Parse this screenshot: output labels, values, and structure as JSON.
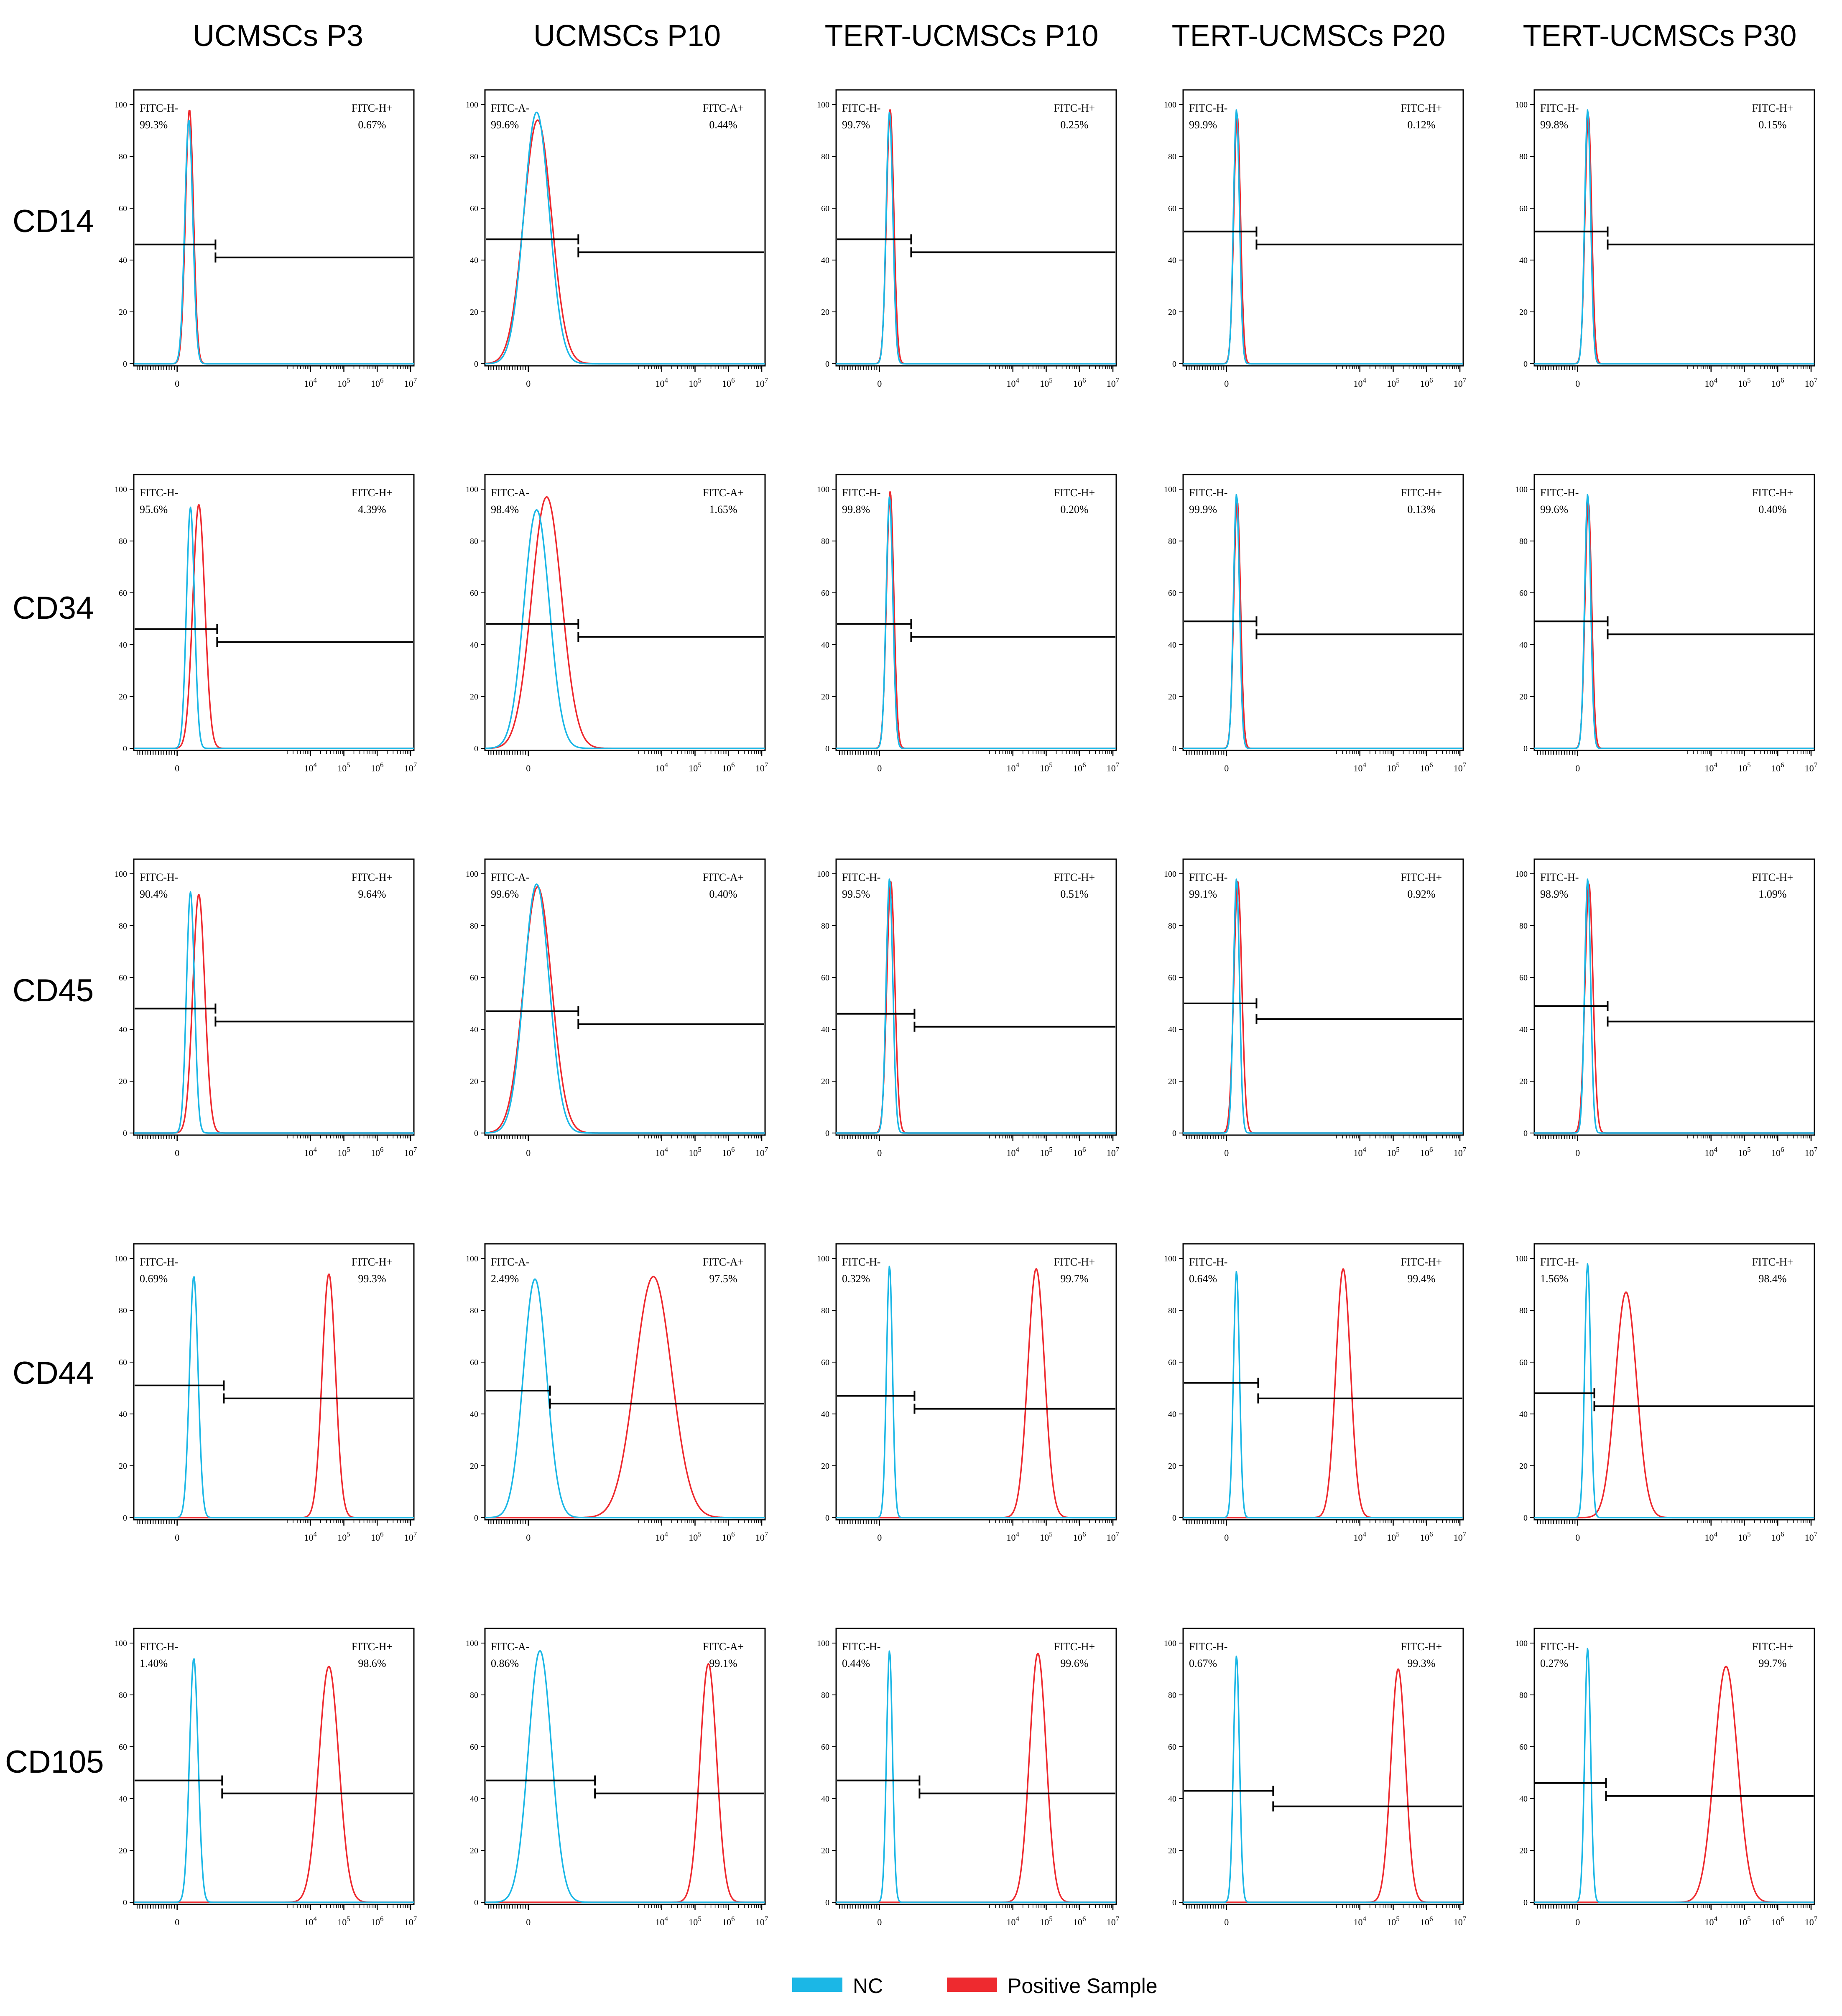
{
  "colors": {
    "nc": "#1bb7e6",
    "positive": "#ee2a2f",
    "axis": "#000000",
    "gate": "#000000"
  },
  "legend": {
    "nc_label": "NC",
    "positive_label": "Positive Sample"
  },
  "chart_data": {
    "type": "histogram-grid",
    "columns": [
      "UCMSCs P3",
      "UCMSCs P10",
      "TERT-UCMSCs P10",
      "TERT-UCMSCs P20",
      "TERT-UCMSCs P30"
    ],
    "rows": [
      "CD14",
      "CD34",
      "CD45",
      "CD44",
      "CD105"
    ],
    "yticks": [
      0,
      20,
      40,
      60,
      80,
      100
    ],
    "ylim": [
      0,
      100
    ],
    "xlim_log": [
      -1.3,
      7.1
    ],
    "xticks": [
      {
        "label": "0",
        "value": 0
      },
      {
        "label": "10",
        "sup": "4",
        "value": 4
      },
      {
        "label": "10",
        "sup": "5",
        "value": 5
      },
      {
        "label": "10",
        "sup": "6",
        "value": 6
      },
      {
        "label": "10",
        "sup": "7",
        "value": 7
      }
    ],
    "panels": [
      {
        "row": "CD14",
        "col": "UCMSCs P3",
        "neg_label": "FITC-H-",
        "neg_pct": "99.3%",
        "pos_label": "FITC-H+",
        "pos_pct": "0.67%",
        "nc": {
          "center": 0.35,
          "width": 0.12,
          "peak": 94
        },
        "sample": {
          "center": 0.37,
          "width": 0.12,
          "peak": 98
        },
        "gate": {
          "x": 1.15,
          "left_y": 46,
          "right_y": 41
        }
      },
      {
        "row": "CD14",
        "col": "UCMSCs P10",
        "neg_label": "FITC-A-",
        "neg_pct": "99.6%",
        "pos_label": "FITC-A+",
        "pos_pct": "0.44%",
        "nc": {
          "center": 0.25,
          "width": 0.38,
          "peak": 97
        },
        "sample": {
          "center": 0.28,
          "width": 0.42,
          "peak": 94
        },
        "gate": {
          "x": 1.5,
          "left_y": 48,
          "right_y": 43
        }
      },
      {
        "row": "CD14",
        "col": "TERT-UCMSCs P10",
        "neg_label": "FITC-H-",
        "neg_pct": "99.7%",
        "pos_label": "FITC-H+",
        "pos_pct": "0.25%",
        "nc": {
          "center": 0.3,
          "width": 0.1,
          "peak": 97
        },
        "sample": {
          "center": 0.32,
          "width": 0.11,
          "peak": 98
        },
        "gate": {
          "x": 0.95,
          "left_y": 48,
          "right_y": 43
        }
      },
      {
        "row": "CD14",
        "col": "TERT-UCMSCs P20",
        "neg_label": "FITC-H-",
        "neg_pct": "99.9%",
        "pos_label": "FITC-H+",
        "pos_pct": "0.12%",
        "nc": {
          "center": 0.3,
          "width": 0.09,
          "peak": 98
        },
        "sample": {
          "center": 0.32,
          "width": 0.1,
          "peak": 96
        },
        "gate": {
          "x": 0.9,
          "left_y": 51,
          "right_y": 46
        }
      },
      {
        "row": "CD14",
        "col": "TERT-UCMSCs P30",
        "neg_label": "FITC-H-",
        "neg_pct": "99.8%",
        "pos_label": "FITC-H+",
        "pos_pct": "0.15%",
        "nc": {
          "center": 0.3,
          "width": 0.09,
          "peak": 98
        },
        "sample": {
          "center": 0.32,
          "width": 0.1,
          "peak": 96
        },
        "gate": {
          "x": 0.9,
          "left_y": 51,
          "right_y": 46
        }
      },
      {
        "row": "CD34",
        "col": "UCMSCs P3",
        "neg_label": "FITC-H-",
        "neg_pct": "95.6%",
        "pos_label": "FITC-H+",
        "pos_pct": "4.39%",
        "nc": {
          "center": 0.4,
          "width": 0.12,
          "peak": 93
        },
        "sample": {
          "center": 0.65,
          "width": 0.18,
          "peak": 94
        },
        "gate": {
          "x": 1.2,
          "left_y": 46,
          "right_y": 41
        }
      },
      {
        "row": "CD34",
        "col": "UCMSCs P10",
        "neg_label": "FITC-A-",
        "neg_pct": "98.4%",
        "pos_label": "FITC-A+",
        "pos_pct": "1.65%",
        "nc": {
          "center": 0.25,
          "width": 0.38,
          "peak": 92
        },
        "sample": {
          "center": 0.55,
          "width": 0.45,
          "peak": 97
        },
        "gate": {
          "x": 1.5,
          "left_y": 48,
          "right_y": 43
        }
      },
      {
        "row": "CD34",
        "col": "TERT-UCMSCs P10",
        "neg_label": "FITC-H-",
        "neg_pct": "99.8%",
        "pos_label": "FITC-H+",
        "pos_pct": "0.20%",
        "nc": {
          "center": 0.3,
          "width": 0.1,
          "peak": 97
        },
        "sample": {
          "center": 0.32,
          "width": 0.11,
          "peak": 99
        },
        "gate": {
          "x": 0.95,
          "left_y": 48,
          "right_y": 43
        }
      },
      {
        "row": "CD34",
        "col": "TERT-UCMSCs P20",
        "neg_label": "FITC-H-",
        "neg_pct": "99.9%",
        "pos_label": "FITC-H+",
        "pos_pct": "0.13%",
        "nc": {
          "center": 0.3,
          "width": 0.09,
          "peak": 98
        },
        "sample": {
          "center": 0.32,
          "width": 0.1,
          "peak": 96
        },
        "gate": {
          "x": 0.9,
          "left_y": 49,
          "right_y": 44
        }
      },
      {
        "row": "CD34",
        "col": "TERT-UCMSCs P30",
        "neg_label": "FITC-H-",
        "neg_pct": "99.6%",
        "pos_label": "FITC-H+",
        "pos_pct": "0.40%",
        "nc": {
          "center": 0.3,
          "width": 0.09,
          "peak": 98
        },
        "sample": {
          "center": 0.32,
          "width": 0.1,
          "peak": 95
        },
        "gate": {
          "x": 0.9,
          "left_y": 49,
          "right_y": 44
        }
      },
      {
        "row": "CD45",
        "col": "UCMSCs P3",
        "neg_label": "FITC-H-",
        "neg_pct": "90.4%",
        "pos_label": "FITC-H+",
        "pos_pct": "9.64%",
        "nc": {
          "center": 0.4,
          "width": 0.12,
          "peak": 93
        },
        "sample": {
          "center": 0.65,
          "width": 0.18,
          "peak": 92
        },
        "gate": {
          "x": 1.15,
          "left_y": 48,
          "right_y": 43
        }
      },
      {
        "row": "CD45",
        "col": "UCMSCs P10",
        "neg_label": "FITC-A-",
        "neg_pct": "99.6%",
        "pos_label": "FITC-A+",
        "pos_pct": "0.40%",
        "nc": {
          "center": 0.25,
          "width": 0.38,
          "peak": 96
        },
        "sample": {
          "center": 0.28,
          "width": 0.42,
          "peak": 95
        },
        "gate": {
          "x": 1.5,
          "left_y": 47,
          "right_y": 42
        }
      },
      {
        "row": "CD45",
        "col": "TERT-UCMSCs P10",
        "neg_label": "FITC-H-",
        "neg_pct": "99.5%",
        "pos_label": "FITC-H+",
        "pos_pct": "0.51%",
        "nc": {
          "center": 0.3,
          "width": 0.1,
          "peak": 98
        },
        "sample": {
          "center": 0.34,
          "width": 0.12,
          "peak": 97
        },
        "gate": {
          "x": 1.05,
          "left_y": 46,
          "right_y": 41
        }
      },
      {
        "row": "CD45",
        "col": "TERT-UCMSCs P20",
        "neg_label": "FITC-H-",
        "neg_pct": "99.1%",
        "pos_label": "FITC-H+",
        "pos_pct": "0.92%",
        "nc": {
          "center": 0.3,
          "width": 0.09,
          "peak": 98
        },
        "sample": {
          "center": 0.34,
          "width": 0.12,
          "peak": 97
        },
        "gate": {
          "x": 0.9,
          "left_y": 50,
          "right_y": 44
        }
      },
      {
        "row": "CD45",
        "col": "TERT-UCMSCs P30",
        "neg_label": "FITC-H-",
        "neg_pct": "98.9%",
        "pos_label": "FITC-H+",
        "pos_pct": "1.09%",
        "nc": {
          "center": 0.3,
          "width": 0.09,
          "peak": 98
        },
        "sample": {
          "center": 0.34,
          "width": 0.12,
          "peak": 96
        },
        "gate": {
          "x": 0.9,
          "left_y": 49,
          "right_y": 43
        }
      },
      {
        "row": "CD44",
        "col": "UCMSCs P3",
        "neg_label": "FITC-H-",
        "neg_pct": "0.69%",
        "pos_label": "FITC-H+",
        "pos_pct": "99.3%",
        "nc": {
          "center": 0.5,
          "width": 0.13,
          "peak": 93
        },
        "sample": {
          "center": 4.55,
          "width": 0.2,
          "peak": 94
        },
        "gate": {
          "x": 1.4,
          "left_y": 51,
          "right_y": 46
        }
      },
      {
        "row": "CD44",
        "col": "UCMSCs P10",
        "neg_label": "FITC-A-",
        "neg_pct": "2.49%",
        "pos_label": "FITC-A+",
        "pos_pct": "97.5%",
        "nc": {
          "center": 0.2,
          "width": 0.35,
          "peak": 92
        },
        "sample": {
          "center": 3.75,
          "width": 0.55,
          "peak": 93
        },
        "gate": {
          "x": 0.65,
          "left_y": 49,
          "right_y": 44
        }
      },
      {
        "row": "CD44",
        "col": "TERT-UCMSCs P10",
        "neg_label": "FITC-H-",
        "neg_pct": "0.32%",
        "pos_label": "FITC-H+",
        "pos_pct": "99.7%",
        "nc": {
          "center": 0.3,
          "width": 0.09,
          "peak": 97
        },
        "sample": {
          "center": 4.7,
          "width": 0.25,
          "peak": 96
        },
        "gate": {
          "x": 1.05,
          "left_y": 47,
          "right_y": 42
        }
      },
      {
        "row": "CD44",
        "col": "TERT-UCMSCs P20",
        "neg_label": "FITC-H-",
        "neg_pct": "0.64%",
        "pos_label": "FITC-H+",
        "pos_pct": "99.4%",
        "nc": {
          "center": 0.3,
          "width": 0.09,
          "peak": 95
        },
        "sample": {
          "center": 3.5,
          "width": 0.22,
          "peak": 96
        },
        "gate": {
          "x": 0.95,
          "left_y": 52,
          "right_y": 46
        }
      },
      {
        "row": "CD44",
        "col": "TERT-UCMSCs P30",
        "neg_label": "FITC-H-",
        "neg_pct": "1.56%",
        "pos_label": "FITC-H+",
        "pos_pct": "98.4%",
        "nc": {
          "center": 0.3,
          "width": 0.09,
          "peak": 98
        },
        "sample": {
          "center": 1.45,
          "width": 0.32,
          "peak": 87
        },
        "gate": {
          "x": 0.5,
          "left_y": 48,
          "right_y": 43
        }
      },
      {
        "row": "CD105",
        "col": "UCMSCs P3",
        "neg_label": "FITC-H-",
        "neg_pct": "1.40%",
        "pos_label": "FITC-H+",
        "pos_pct": "98.6%",
        "nc": {
          "center": 0.5,
          "width": 0.13,
          "peak": 94
        },
        "sample": {
          "center": 4.55,
          "width": 0.3,
          "peak": 91
        },
        "gate": {
          "x": 1.35,
          "left_y": 47,
          "right_y": 42
        }
      },
      {
        "row": "CD105",
        "col": "UCMSCs P10",
        "neg_label": "FITC-A-",
        "neg_pct": "0.86%",
        "pos_label": "FITC-A+",
        "pos_pct": "99.1%",
        "nc": {
          "center": 0.35,
          "width": 0.35,
          "peak": 97
        },
        "sample": {
          "center": 5.4,
          "width": 0.25,
          "peak": 92
        },
        "gate": {
          "x": 2.0,
          "left_y": 47,
          "right_y": 42
        }
      },
      {
        "row": "CD105",
        "col": "TERT-UCMSCs P10",
        "neg_label": "FITC-H-",
        "neg_pct": "0.44%",
        "pos_label": "FITC-H+",
        "pos_pct": "99.6%",
        "nc": {
          "center": 0.3,
          "width": 0.09,
          "peak": 97
        },
        "sample": {
          "center": 4.75,
          "width": 0.25,
          "peak": 96
        },
        "gate": {
          "x": 1.2,
          "left_y": 47,
          "right_y": 42
        }
      },
      {
        "row": "CD105",
        "col": "TERT-UCMSCs P20",
        "neg_label": "FITC-H-",
        "neg_pct": "0.67%",
        "pos_label": "FITC-H+",
        "pos_pct": "99.3%",
        "nc": {
          "center": 0.3,
          "width": 0.09,
          "peak": 95
        },
        "sample": {
          "center": 5.15,
          "width": 0.22,
          "peak": 90
        },
        "gate": {
          "x": 1.4,
          "left_y": 43,
          "right_y": 37
        }
      },
      {
        "row": "CD105",
        "col": "TERT-UCMSCs P30",
        "neg_label": "FITC-H-",
        "neg_pct": "0.27%",
        "pos_label": "FITC-H+",
        "pos_pct": "99.7%",
        "nc": {
          "center": 0.3,
          "width": 0.09,
          "peak": 98
        },
        "sample": {
          "center": 4.45,
          "width": 0.35,
          "peak": 91
        },
        "gate": {
          "x": 0.85,
          "left_y": 46,
          "right_y": 41
        }
      }
    ]
  }
}
